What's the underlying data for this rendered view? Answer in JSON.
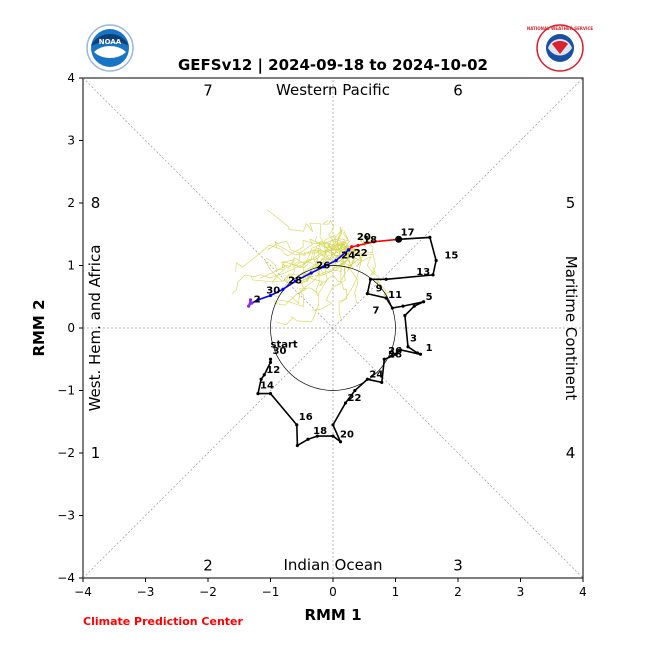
{
  "colors": {
    "observed": "#000000",
    "mean_first": "#ff0000",
    "mean_mid": "#0000ff",
    "mean_last": "#8a2be2",
    "ensemble": "#d4d44a",
    "guides": "#999999",
    "footer": "#ff0000",
    "noaa_blue": "#1a74c4",
    "nws_red": "#d9232d"
  },
  "logos": {
    "left": "noaa-logo",
    "left_text": "NOAA",
    "right": "nws-logo",
    "right_text": "NATIONAL WEATHER SERVICE"
  },
  "footer": {
    "text": "Climate Prediction Center"
  },
  "chart_data": {
    "type": "line",
    "title": "GEFSv12 | 2024-09-18 to 2024-10-02",
    "xlabel": "RMM 1",
    "ylabel": "RMM 2",
    "xlim": [
      -4,
      4
    ],
    "ylim": [
      -4,
      4
    ],
    "xticks": [
      "−4",
      "−3",
      "−2",
      "−1",
      "0",
      "1",
      "2",
      "3",
      "4"
    ],
    "yticks": [
      "−4",
      "−3",
      "−2",
      "−1",
      "0",
      "1",
      "2",
      "3",
      "4"
    ],
    "unit_circle_radius": 1,
    "phase_labels": [
      {
        "text": "1",
        "x": -3.8,
        "y": -2.0
      },
      {
        "text": "2",
        "x": -2.0,
        "y": -3.8
      },
      {
        "text": "3",
        "x": 2.0,
        "y": -3.8
      },
      {
        "text": "4",
        "x": 3.8,
        "y": -2.0
      },
      {
        "text": "5",
        "x": 3.8,
        "y": 2.0
      },
      {
        "text": "6",
        "x": 2.0,
        "y": 3.8
      },
      {
        "text": "7",
        "x": -2.0,
        "y": 3.8
      },
      {
        "text": "8",
        "x": -3.8,
        "y": 2.0
      }
    ],
    "region_labels": {
      "top": "Western Pacific",
      "bottom": "Indian Ocean",
      "left": "West. Hem. and Africa",
      "right": "Maritime Continent"
    },
    "start_label": "start",
    "series": [
      {
        "role": "observed",
        "x": [
          -1.0,
          -1.0,
          -1.1,
          -1.15,
          -1.2,
          -1.0,
          -0.58,
          -0.57,
          -0.4,
          -0.25,
          0.0,
          0.12,
          0.0,
          0.2,
          0.35,
          0.55,
          0.78,
          0.82,
          0.95,
          1.0,
          1.08,
          1.4,
          1.35,
          1.2,
          1.15,
          1.3,
          1.45,
          1.12,
          0.95,
          0.85,
          0.55,
          0.6,
          0.85,
          1.6,
          1.65,
          1.55,
          1.05
        ],
        "y": [
          -0.5,
          -0.55,
          -0.75,
          -0.82,
          -1.05,
          -1.05,
          -1.55,
          -1.88,
          -1.78,
          -1.73,
          -1.73,
          -1.82,
          -1.55,
          -1.2,
          -1.0,
          -0.82,
          -0.87,
          -0.5,
          -0.45,
          -0.42,
          -0.35,
          -0.42,
          -0.4,
          -0.3,
          0.2,
          0.35,
          0.42,
          0.35,
          0.32,
          0.48,
          0.55,
          0.78,
          0.78,
          0.85,
          1.08,
          1.45,
          1.42
        ],
        "labels": [
          {
            "text": "30",
            "x": -1.0,
            "y": -0.45
          },
          {
            "text": "12",
            "x": -1.1,
            "y": -0.75
          },
          {
            "text": "14",
            "x": -1.2,
            "y": -1.0
          },
          {
            "text": "16",
            "x": -0.58,
            "y": -1.5
          },
          {
            "text": "18",
            "x": -0.35,
            "y": -1.73
          },
          {
            "text": "20",
            "x": 0.08,
            "y": -1.78
          },
          {
            "text": "22",
            "x": 0.2,
            "y": -1.2
          },
          {
            "text": "24",
            "x": 0.55,
            "y": -0.82
          },
          {
            "text": "26",
            "x": 0.85,
            "y": -0.45
          },
          {
            "text": "28",
            "x": 0.85,
            "y": -0.5
          },
          {
            "text": "1",
            "x": 1.45,
            "y": -0.4
          },
          {
            "text": "3",
            "x": 1.2,
            "y": -0.25
          },
          {
            "text": "5",
            "x": 1.45,
            "y": 0.42
          },
          {
            "text": "7",
            "x": 0.6,
            "y": 0.2
          },
          {
            "text": "9",
            "x": 0.65,
            "y": 0.55
          },
          {
            "text": "11",
            "x": 0.85,
            "y": 0.45
          },
          {
            "text": "13",
            "x": 1.3,
            "y": 0.82
          },
          {
            "text": "15",
            "x": 1.75,
            "y": 1.08
          },
          {
            "text": "17",
            "x": 1.05,
            "y": 1.45
          }
        ]
      },
      {
        "role": "mean_first",
        "x": [
          1.05,
          0.65,
          0.4,
          0.3,
          0.25
        ],
        "y": [
          1.42,
          1.38,
          1.32,
          1.3,
          1.25
        ],
        "labels": [
          {
            "text": "20",
            "x": 0.35,
            "y": 1.38
          },
          {
            "text": "18",
            "x": 0.45,
            "y": 1.33
          }
        ]
      },
      {
        "role": "mean_mid",
        "x": [
          0.25,
          0.05,
          -0.15,
          -0.35,
          -0.6,
          -0.8,
          -1.0,
          -1.2,
          -1.3
        ],
        "y": [
          1.25,
          1.08,
          0.98,
          0.88,
          0.75,
          0.62,
          0.52,
          0.45,
          0.4
        ],
        "labels": [
          {
            "text": "22",
            "x": 0.3,
            "y": 1.12
          },
          {
            "text": "24",
            "x": 0.1,
            "y": 1.08
          },
          {
            "text": "26",
            "x": -0.3,
            "y": 0.92
          },
          {
            "text": "28",
            "x": -0.75,
            "y": 0.68
          },
          {
            "text": "30",
            "x": -1.1,
            "y": 0.52
          }
        ]
      },
      {
        "role": "mean_last",
        "x": [
          -1.3,
          -1.35,
          -1.32
        ],
        "y": [
          0.4,
          0.35,
          0.45
        ],
        "labels": [
          {
            "text": "2",
            "x": -1.3,
            "y": 0.38
          }
        ]
      }
    ]
  }
}
